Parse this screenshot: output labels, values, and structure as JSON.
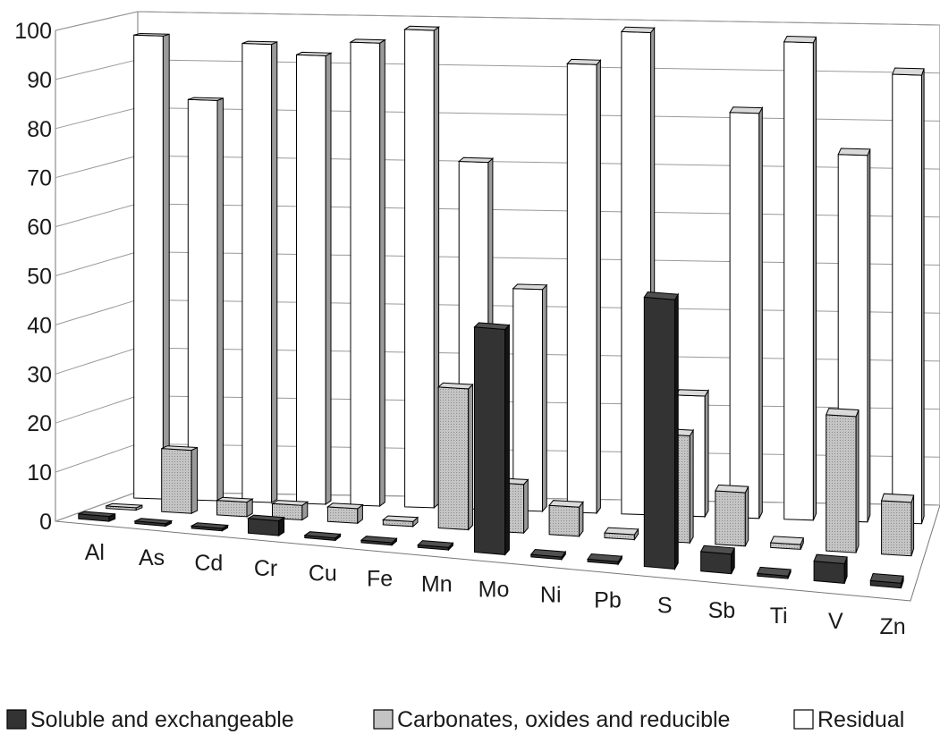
{
  "chart_data": {
    "type": "bar",
    "title": "",
    "xlabel": "",
    "ylabel": "",
    "ylim": [
      0,
      100
    ],
    "yticks": [
      0,
      10,
      20,
      30,
      40,
      50,
      60,
      70,
      80,
      90,
      100
    ],
    "grid": true,
    "legend_position": "bottom",
    "categories": [
      "Al",
      "As",
      "Cd",
      "Cr",
      "Cu",
      "Fe",
      "Mn",
      "Mo",
      "Ni",
      "Pb",
      "S",
      "Sb",
      "Ti",
      "V",
      "Zn"
    ],
    "series": [
      {
        "name": "Soluble and exchangeable",
        "color": "#333333",
        "values": [
          1,
          0.5,
          0.5,
          3,
          0.5,
          0.5,
          0.5,
          46,
          0.5,
          0.5,
          55,
          4,
          0.5,
          4,
          1
        ]
      },
      {
        "name": "Carbonates, oxides and reducible",
        "color": "#c8c8c8",
        "values": [
          0.5,
          13,
          3,
          3,
          3,
          1,
          29,
          10,
          6,
          1,
          22,
          11,
          1,
          28,
          11
        ]
      },
      {
        "name": "Residual",
        "color": "#ffffff",
        "values": [
          96,
          83,
          95,
          93,
          96,
          99,
          72,
          46,
          93,
          100,
          25,
          84,
          99,
          76,
          93
        ]
      }
    ]
  }
}
